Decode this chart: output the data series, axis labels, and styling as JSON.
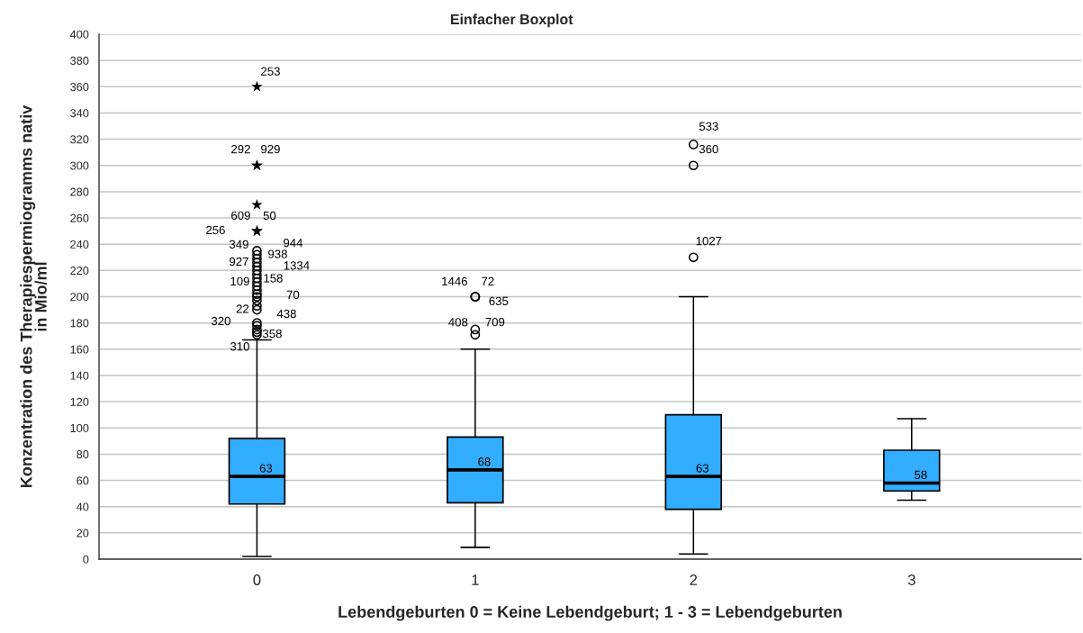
{
  "chart_data": {
    "type": "box",
    "title": "Einfacher Boxplot",
    "xlabel": "Lebendgeburten 0 = Keine Lebendgeburt; 1 - 3 = Lebendgeburten",
    "ylabel": "Konzentration des Therapiespermiogramms nativ\nin Mio/ml",
    "categories": [
      "0",
      "1",
      "2",
      "3"
    ],
    "color": "#32adff",
    "boxes": [
      {
        "low": 2,
        "q1": 42,
        "median": 63,
        "q3": 92,
        "high": 167
      },
      {
        "low": 9,
        "q1": 43,
        "median": 68,
        "q3": 93,
        "high": 160
      },
      {
        "low": 4,
        "q1": 38,
        "median": 63,
        "q3": 110,
        "high": 200
      },
      {
        "low": 45,
        "q1": 52,
        "median": 58,
        "q3": 83,
        "high": 107
      }
    ],
    "series": [
      {
        "type": "scatter",
        "marker": "circle",
        "color": "#000000",
        "x": [
          "0",
          "0",
          "0",
          "0",
          "0",
          "0",
          "0",
          "0",
          "0",
          "0",
          "0",
          "0",
          "0",
          "0",
          "0",
          "0",
          "0",
          "0",
          "0",
          "0",
          "0",
          "1",
          "1",
          "1",
          "1",
          "1",
          "2",
          "2",
          "2"
        ],
        "values": [
          235,
          232,
          229,
          226,
          223,
          220,
          217,
          214,
          211,
          208,
          205,
          202,
          200,
          197,
          193,
          190,
          180,
          178,
          175,
          173,
          171,
          200,
          200,
          200,
          175,
          171,
          316,
          300,
          230
        ]
      },
      {
        "type": "scatter",
        "marker": "star",
        "color": "#000000",
        "x": [
          "0",
          "0",
          "0",
          "0",
          "0",
          "0"
        ],
        "values": [
          360,
          300,
          300,
          270,
          250,
          250
        ]
      }
    ],
    "ylim": [
      0,
      400
    ],
    "yticks": [
      0,
      20,
      40,
      60,
      80,
      100,
      120,
      140,
      160,
      180,
      200,
      220,
      240,
      260,
      280,
      300,
      320,
      340,
      360,
      380,
      400
    ],
    "grid": "y",
    "annotations": [
      {
        "text": "253",
        "x": "0",
        "y": 360
      },
      {
        "text": "292",
        "x": "0",
        "y": 300
      },
      {
        "text": "929",
        "x": "0",
        "y": 300
      },
      {
        "text": "609",
        "x": "0",
        "y": 270
      },
      {
        "text": "50",
        "x": "0",
        "y": 250
      },
      {
        "text": "256",
        "x": "0",
        "y": 250
      },
      {
        "text": "349",
        "x": "0",
        "y": 235
      },
      {
        "text": "944",
        "x": "0",
        "y": 232
      },
      {
        "text": "938",
        "x": "0",
        "y": 229
      },
      {
        "text": "927",
        "x": "0",
        "y": 226
      },
      {
        "text": "1334",
        "x": "0",
        "y": 223
      },
      {
        "text": "109",
        "x": "0",
        "y": 211
      },
      {
        "text": "158",
        "x": "0",
        "y": 214
      },
      {
        "text": "70",
        "x": "0",
        "y": 200
      },
      {
        "text": "22",
        "x": "0",
        "y": 190
      },
      {
        "text": "438",
        "x": "0",
        "y": 178
      },
      {
        "text": "320",
        "x": "0",
        "y": 180
      },
      {
        "text": "358",
        "x": "0",
        "y": 171
      },
      {
        "text": "310",
        "x": "0",
        "y": 173
      },
      {
        "text": "1446",
        "x": "1",
        "y": 200
      },
      {
        "text": "72",
        "x": "1",
        "y": 200
      },
      {
        "text": "635",
        "x": "1",
        "y": 200
      },
      {
        "text": "408",
        "x": "1",
        "y": 175
      },
      {
        "text": "709",
        "x": "1",
        "y": 171
      },
      {
        "text": "533",
        "x": "2",
        "y": 316
      },
      {
        "text": "360",
        "x": "2",
        "y": 300
      },
      {
        "text": "1027",
        "x": "2",
        "y": 230
      },
      {
        "text": "63",
        "x": "0",
        "y": 63
      },
      {
        "text": "68",
        "x": "1",
        "y": 68
      },
      {
        "text": "63",
        "x": "2",
        "y": 63
      },
      {
        "text": "58",
        "x": "3",
        "y": 58
      }
    ]
  }
}
